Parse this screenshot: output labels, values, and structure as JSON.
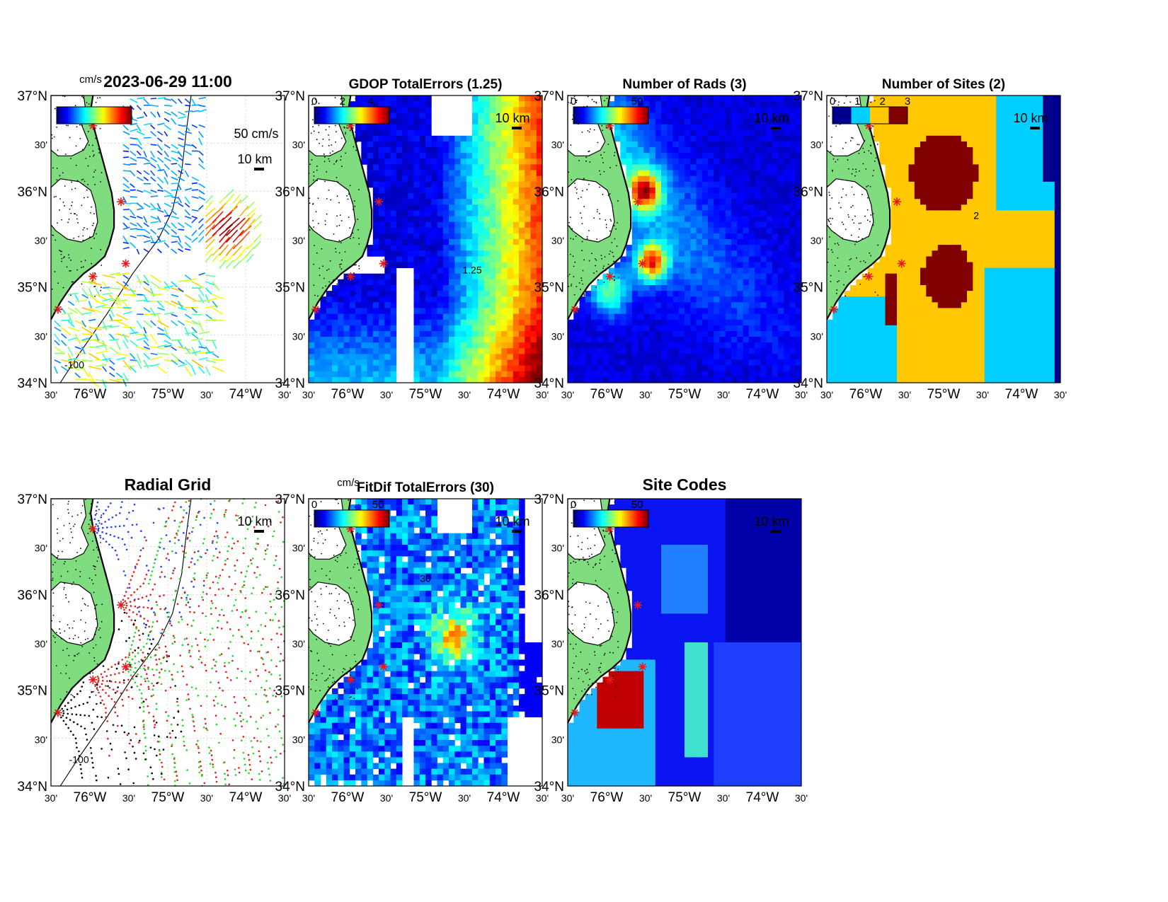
{
  "figure": {
    "lat_labels": [
      "37°N",
      "30'",
      "36°N",
      "30'",
      "35°N",
      "30'",
      "34°N"
    ],
    "lon_labels": [
      "30'",
      "76°W",
      "30'",
      "75°W",
      "30'",
      "74°W",
      "30'"
    ],
    "scale_bar_label": "10 km",
    "colors": {
      "land": "#7fdc7f",
      "grid": "#d8d8d8",
      "site": "#e41a1c",
      "coast": "#000000"
    }
  },
  "panels": [
    {
      "id": "totals",
      "title": "2023-06-29 11:00",
      "kind": "vectors",
      "colorbar": {
        "unit": "cm/s",
        "ticks": []
      },
      "reference_vector_label": "50 cm/s",
      "contour_label": "-100"
    },
    {
      "id": "gdop",
      "title": "GDOP TotalErrors (1.25)",
      "kind": "heat",
      "colorbar": {
        "unit": "",
        "ticks": [
          "0",
          "2",
          "4"
        ]
      },
      "contour_label": "1.25"
    },
    {
      "id": "nrads",
      "title": "Number of Rads (3)",
      "kind": "heat",
      "colorbar": {
        "unit": "",
        "ticks": [
          "0",
          "50"
        ]
      }
    },
    {
      "id": "nsites",
      "title": "Number of Sites (2)",
      "kind": "categorical",
      "colorbar": {
        "unit": "",
        "ticks": [
          "0",
          "1",
          "2",
          "3"
        ]
      },
      "contour_label": "2"
    },
    {
      "id": "radgrid",
      "title": "Radial Grid",
      "kind": "dots",
      "contour_label": "-100"
    },
    {
      "id": "fitdif",
      "title": "FitDif TotalErrors (30)",
      "kind": "heat",
      "colorbar": {
        "unit": "cm/s",
        "ticks": [
          "0",
          "50"
        ]
      },
      "contour_label": "30"
    },
    {
      "id": "sitecodes",
      "title": "Site Codes",
      "kind": "categorical",
      "colorbar": {
        "unit": "",
        "ticks": [
          "0",
          "50"
        ]
      }
    }
  ]
}
